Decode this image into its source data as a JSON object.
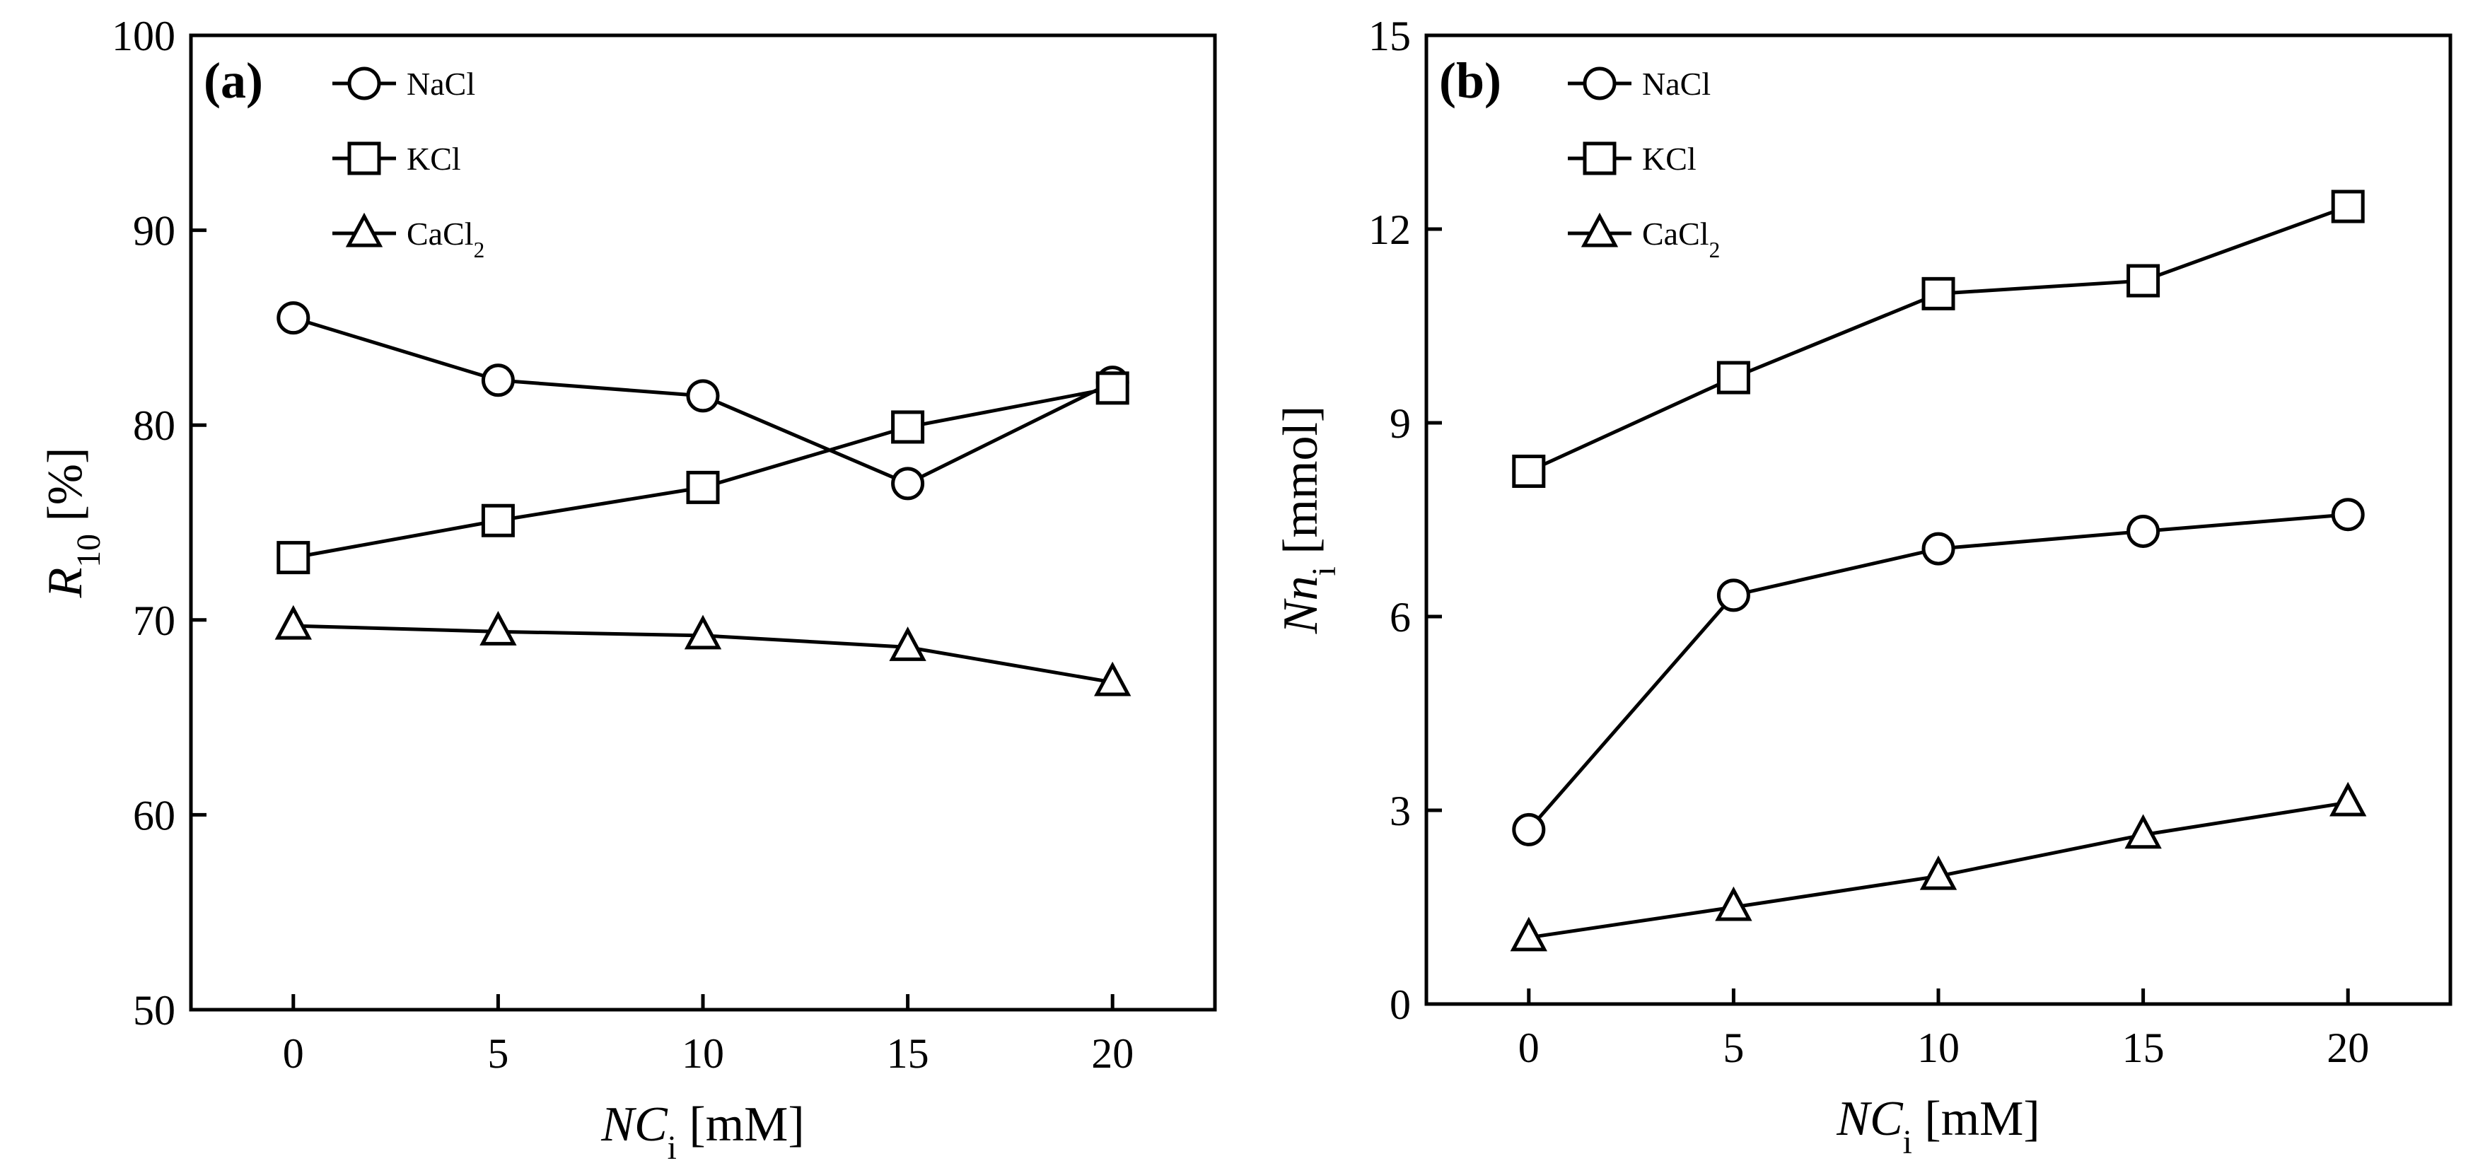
{
  "chart_data": [
    {
      "type": "line",
      "panel": "(a)",
      "x": [
        0,
        5,
        10,
        15,
        20
      ],
      "xticks": [
        "0",
        "5",
        "10",
        "15",
        "20"
      ],
      "xlim": [
        -2.5,
        22.5
      ],
      "ylim": [
        50,
        100
      ],
      "yticks": [
        "50",
        "60",
        "70",
        "80",
        "90",
        "100"
      ],
      "xlabel": {
        "main": "NC",
        "sub": "i",
        "unit": "[mM]"
      },
      "ylabel": {
        "main": "R",
        "sub": "10",
        "unit": "[%]"
      },
      "series": [
        {
          "name": "NaCl",
          "label_main": "NaCl",
          "label_sub": "",
          "marker": "circle",
          "values": [
            85.5,
            82.3,
            81.5,
            77.0,
            82.2
          ]
        },
        {
          "name": "KCl",
          "label_main": "KCl",
          "label_sub": "",
          "marker": "square",
          "values": [
            73.2,
            75.1,
            76.8,
            79.9,
            81.9
          ]
        },
        {
          "name": "CaCl2",
          "label_main": "CaCl",
          "label_sub": "2",
          "marker": "triangle",
          "values": [
            69.7,
            69.4,
            69.2,
            68.6,
            66.8
          ]
        }
      ]
    },
    {
      "type": "line",
      "panel": "(b)",
      "x": [
        0,
        5,
        10,
        15,
        20
      ],
      "xticks": [
        "0",
        "5",
        "10",
        "15",
        "20"
      ],
      "xlim": [
        -2.5,
        22.5
      ],
      "ylim": [
        0,
        15
      ],
      "yticks": [
        "0",
        "3",
        "6",
        "9",
        "12",
        "15"
      ],
      "xlabel": {
        "main": "NC",
        "sub": "i",
        "unit": "[mM]"
      },
      "ylabel": {
        "main": "Nn",
        "sub": "i",
        "unit": "[mmol]"
      },
      "series": [
        {
          "name": "NaCl",
          "label_main": "NaCl",
          "label_sub": "",
          "marker": "circle",
          "values": [
            2.7,
            6.33,
            7.05,
            7.32,
            7.58
          ]
        },
        {
          "name": "KCl",
          "label_main": "KCl",
          "label_sub": "",
          "marker": "square",
          "values": [
            8.25,
            9.7,
            11.0,
            11.2,
            12.35
          ]
        },
        {
          "name": "CaCl2",
          "label_main": "CaCl",
          "label_sub": "2",
          "marker": "triangle",
          "values": [
            1.03,
            1.5,
            1.98,
            2.62,
            3.12
          ]
        }
      ]
    }
  ]
}
